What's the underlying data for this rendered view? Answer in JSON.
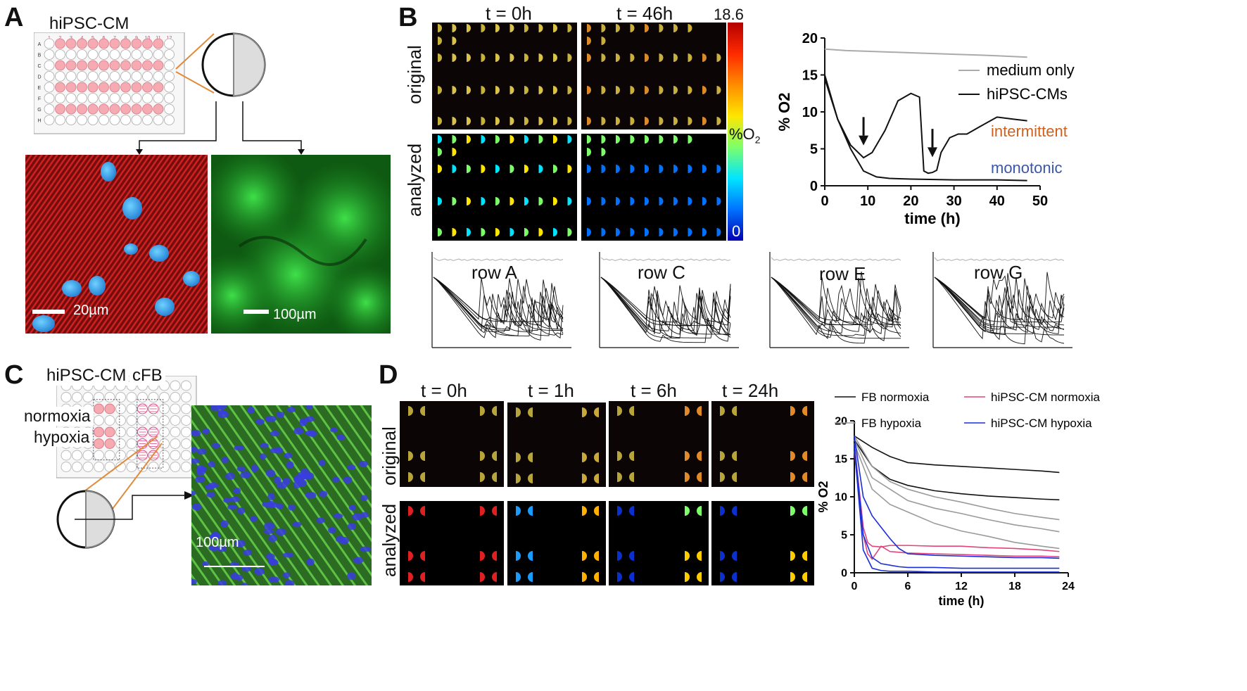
{
  "panels": {
    "a": "A",
    "b": "B",
    "c": "C",
    "d": "D"
  },
  "panel_a": {
    "plate_title": "hiPSC-CM",
    "plate_cols": [
      "1",
      "2",
      "3",
      "4",
      "5",
      "6",
      "7",
      "8",
      "9",
      "10",
      "11",
      "12"
    ],
    "plate_rows": [
      "A",
      "B",
      "C",
      "D",
      "E",
      "F",
      "G",
      "H"
    ],
    "scale_left": "20µm",
    "scale_right": "100µm"
  },
  "panel_b": {
    "time_labels": [
      "t = 0h",
      "t = 46h"
    ],
    "row_labels": [
      "original",
      "analyzed"
    ],
    "colorbar": {
      "max": "18.6",
      "min": "0",
      "unit": "%O",
      "unit_sub": "2"
    },
    "small_plots": [
      "row A",
      "row C",
      "row E",
      "row G"
    ],
    "legend": [
      "medium only",
      "hiPSC-CMs"
    ],
    "annotations": [
      "intermittent",
      "monotonic"
    ]
  },
  "panel_c": {
    "plate_labels": [
      "hiPSC-CM",
      "cFB"
    ],
    "conditions": [
      "normoxia",
      "hypoxia"
    ],
    "scale": "100µm"
  },
  "panel_d": {
    "time_labels": [
      "t = 0h",
      "t = 1h",
      "t = 6h",
      "t = 24h"
    ],
    "row_labels": [
      "original",
      "analyzed"
    ],
    "legend": [
      "FB normoxia",
      "FB hypoxia",
      "hiPSC-CM normoxia",
      "hiPSC-CM hypoxia"
    ]
  },
  "colors": {
    "medium": "#aaaaaa",
    "cm": "#111111",
    "fb_normoxia": "#111111",
    "fb_hypoxia": "#9a9a9a",
    "cm_normoxia": "#e0457b",
    "cm_hypoxia": "#1a2fd6",
    "intermittent": "#d0601e",
    "monotonic": "#3a57a8"
  },
  "chart_data": [
    {
      "type": "line",
      "ylabel": "% O2",
      "xlabel": "time (h)",
      "xlim": [
        0,
        50
      ],
      "ylim": [
        0,
        20
      ],
      "xticks": [
        0,
        10,
        20,
        30,
        40,
        50
      ],
      "yticks": [
        0,
        5,
        10,
        15,
        20
      ],
      "series": [
        {
          "name": "medium only",
          "x": [
            0,
            5,
            10,
            20,
            30,
            40,
            47
          ],
          "values": [
            18.5,
            18.3,
            18.2,
            18.0,
            17.8,
            17.6,
            17.4
          ]
        },
        {
          "name": "hiPSC-CMs",
          "x": [
            0,
            3,
            6,
            9,
            11,
            14,
            17,
            20,
            22,
            23,
            24,
            25,
            26,
            27,
            29,
            31,
            33,
            36,
            40,
            44,
            47
          ],
          "values": [
            14.5,
            9,
            5.5,
            3.8,
            4.5,
            7.5,
            11.5,
            12.5,
            12,
            2,
            1.7,
            1.8,
            2.1,
            4.5,
            6.5,
            7,
            7,
            8,
            9.3,
            9,
            8.8
          ]
        },
        {
          "name": "hiPSC-CMs",
          "x": [
            0,
            3,
            6,
            9,
            12,
            15,
            20,
            30,
            40,
            47
          ],
          "values": [
            15,
            9,
            5,
            2,
            1.2,
            1.0,
            0.9,
            0.8,
            0.8,
            0.7
          ]
        }
      ],
      "annotations": [
        "intermittent",
        "monotonic"
      ]
    },
    {
      "type": "line",
      "ylabel": "% O2",
      "xlabel": "time (h)",
      "xlim": [
        0,
        24
      ],
      "ylim": [
        0,
        20
      ],
      "xticks": [
        0,
        6,
        12,
        18,
        24
      ],
      "yticks": [
        0,
        5,
        10,
        15,
        20
      ],
      "series": [
        {
          "name": "FB normoxia",
          "x": [
            0,
            2,
            4,
            6,
            9,
            12,
            15,
            18,
            21,
            23
          ],
          "values": [
            18,
            16.5,
            15.3,
            14.5,
            14.2,
            14,
            13.8,
            13.6,
            13.4,
            13.2
          ]
        },
        {
          "name": "FB normoxia",
          "x": [
            0,
            2,
            4,
            6,
            9,
            12,
            15,
            18,
            21,
            23
          ],
          "values": [
            17.5,
            14,
            12.3,
            11.5,
            10.8,
            10.4,
            10.1,
            9.9,
            9.7,
            9.6
          ]
        },
        {
          "name": "FB hypoxia",
          "x": [
            0,
            2,
            4,
            6,
            9,
            12,
            15,
            18,
            21,
            23
          ],
          "values": [
            18,
            14,
            12,
            11,
            10,
            9.3,
            8.5,
            7.8,
            7.3,
            7
          ]
        },
        {
          "name": "FB hypoxia",
          "x": [
            0,
            2,
            4,
            6,
            9,
            12,
            15,
            18,
            21,
            23
          ],
          "values": [
            17.5,
            12.5,
            11,
            9.5,
            8.5,
            7.8,
            7,
            6.3,
            5.8,
            5.4
          ]
        },
        {
          "name": "FB hypoxia",
          "x": [
            0,
            2,
            4,
            6,
            9,
            12,
            15,
            18,
            21,
            23
          ],
          "values": [
            17,
            11,
            9,
            8,
            6.5,
            5.5,
            4.8,
            4,
            3.5,
            3.2
          ]
        },
        {
          "name": "hiPSC-CM normoxia",
          "x": [
            0,
            1,
            1.5,
            2,
            3,
            4,
            6,
            9,
            12,
            15,
            18,
            21,
            23
          ],
          "values": [
            17,
            6,
            4,
            3.5,
            3.4,
            3.6,
            3.6,
            3.5,
            3.5,
            3.3,
            3.2,
            3.0,
            2.8
          ]
        },
        {
          "name": "hiPSC-CM normoxia",
          "x": [
            0,
            1,
            1.5,
            2,
            3,
            4,
            6,
            9,
            12,
            15,
            18,
            21,
            23
          ],
          "values": [
            16,
            5,
            2.5,
            1.8,
            3.5,
            2.8,
            2.6,
            2.5,
            2.4,
            2.3,
            2.2,
            2.2,
            2.1
          ]
        },
        {
          "name": "hiPSC-CM hypoxia",
          "x": [
            0,
            1,
            2,
            3,
            4,
            5,
            6,
            9,
            12,
            15,
            18,
            21,
            23
          ],
          "values": [
            18,
            10,
            7.5,
            6,
            4.5,
            3.2,
            2.5,
            2.3,
            2.2,
            2.1,
            2.0,
            2.0,
            1.9
          ]
        },
        {
          "name": "hiPSC-CM hypoxia",
          "x": [
            0,
            1,
            2,
            3,
            4,
            5,
            6,
            9,
            12,
            15,
            18,
            21,
            23
          ],
          "values": [
            17,
            5,
            2,
            1.2,
            1.0,
            0.8,
            0.7,
            0.7,
            0.6,
            0.6,
            0.6,
            0.6,
            0.6
          ]
        },
        {
          "name": "hiPSC-CM hypoxia",
          "x": [
            0,
            1,
            2,
            3,
            4,
            6,
            9,
            12,
            18,
            23
          ],
          "values": [
            16.5,
            3,
            0.6,
            0.3,
            0.2,
            0.2,
            0.1,
            0.1,
            0.1,
            0.1
          ]
        }
      ]
    }
  ]
}
